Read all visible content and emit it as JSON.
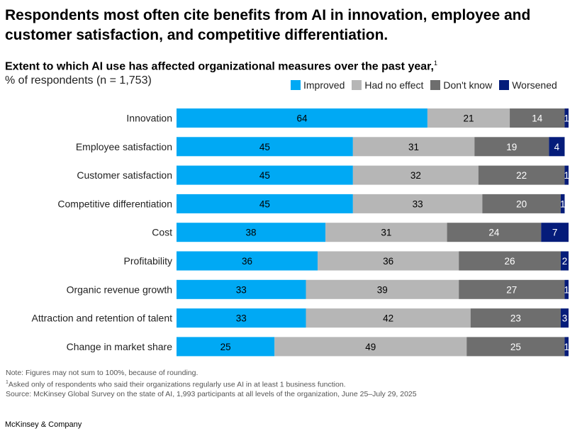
{
  "headline": "Respondents most often cite benefits from AI in innovation, employee and customer satisfaction, and competitive differentiation.",
  "subtitle": "Extent to which AI use has affected organizational measures over the past year,",
  "subtitle_footnote": "1",
  "units": "% of respondents (n = 1,753)",
  "colors": {
    "improved": "#00a9f4",
    "no_effect": "#b6b6b6",
    "dont_know": "#6e6e6e",
    "worsened": "#051c7a"
  },
  "chart_data": {
    "type": "bar",
    "orientation": "horizontal",
    "stacked": true,
    "categories": [
      "Innovation",
      "Employee satisfaction",
      "Customer satisfaction",
      "Competitive differentiation",
      "Cost",
      "Profitability",
      "Organic revenue growth",
      "Attraction and retention of talent",
      "Change in market share"
    ],
    "series": [
      {
        "name": "Improved",
        "color": "#00a9f4",
        "values": [
          64,
          45,
          45,
          45,
          38,
          36,
          33,
          33,
          25
        ]
      },
      {
        "name": "Had no effect",
        "color": "#b6b6b6",
        "values": [
          21,
          31,
          32,
          33,
          31,
          36,
          39,
          42,
          49
        ]
      },
      {
        "name": "Don't know",
        "color": "#6e6e6e",
        "values": [
          14,
          19,
          22,
          20,
          24,
          26,
          27,
          23,
          25
        ]
      },
      {
        "name": "Worsened",
        "color": "#051c7a",
        "values": [
          1,
          4,
          1,
          1,
          7,
          2,
          1,
          3,
          1
        ]
      }
    ],
    "legend_position": "top-right",
    "grid": false
  },
  "notes": {
    "line1": "Note: Figures may not sum to 100%, because of rounding.",
    "line2_marker": "1",
    "line2": "Asked only of respondents who said their organizations regularly use AI in at least 1 business function.",
    "line3": "Source: McKinsey Global Survey on the state of AI, 1,993 participants at all levels of the organization, June 25–July 29, 2025"
  },
  "brand": "McKinsey & Company"
}
